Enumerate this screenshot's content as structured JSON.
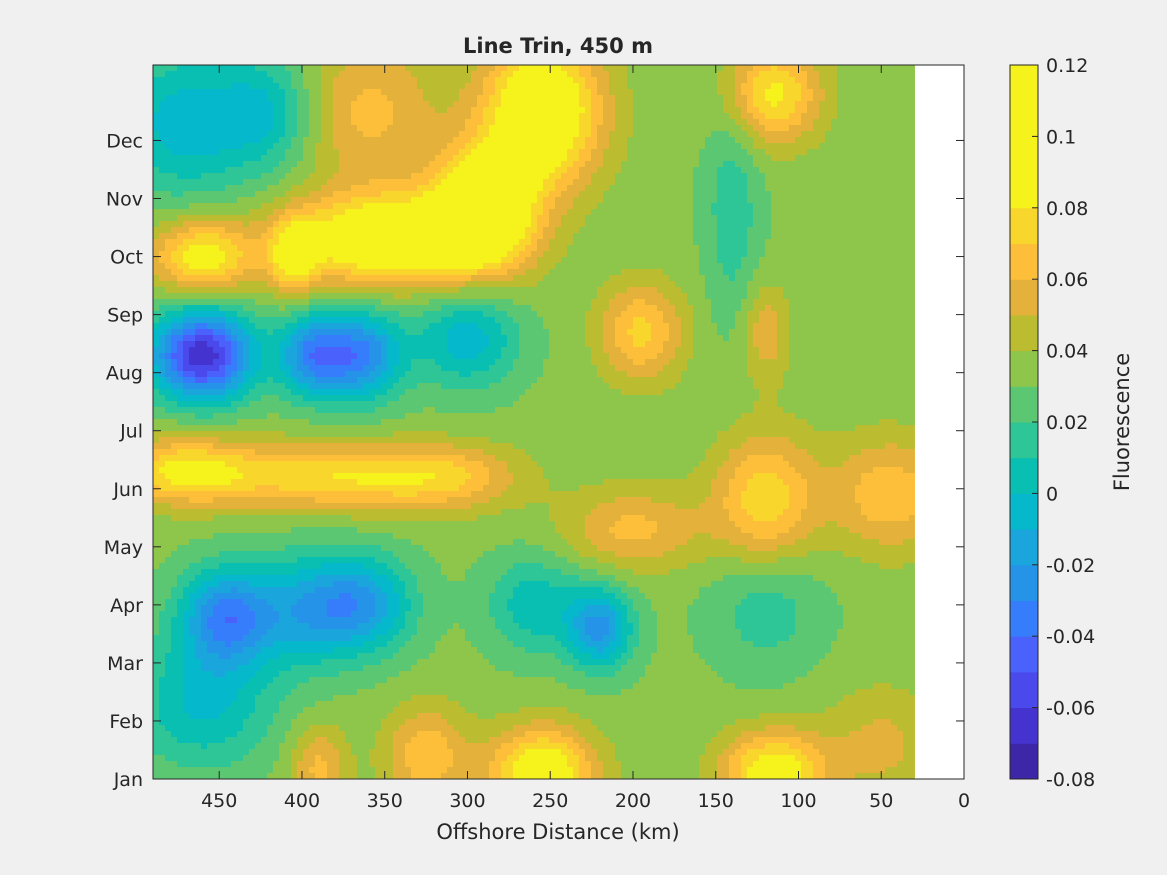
{
  "chart_data": {
    "type": "heatmap",
    "title": "Line Trin, 450 m",
    "xlabel": "Offshore Distance (km)",
    "ylabel": "",
    "x_axis": {
      "reversed": true,
      "lim": [
        0,
        490
      ],
      "ticks": [
        450,
        400,
        350,
        300,
        250,
        200,
        150,
        100,
        50,
        0
      ]
    },
    "y_axis": {
      "categories": [
        "Jan",
        "Feb",
        "Mar",
        "Apr",
        "May",
        "Jun",
        "Jul",
        "Aug",
        "Sep",
        "Oct",
        "Nov",
        "Dec"
      ],
      "lim": [
        0,
        12.3
      ]
    },
    "data_x_range_km": [
      30,
      490
    ],
    "colorbar": {
      "label": "Fluorescence",
      "lim": [
        -0.08,
        0.12
      ],
      "levels_step": 0.01,
      "ticks": [
        "0.12",
        "0.1",
        "0.08",
        "0.06",
        "0.04",
        "0.02",
        "0",
        "-0.02",
        "-0.04",
        "-0.06",
        "-0.08"
      ],
      "tick_values": [
        0.12,
        0.1,
        0.08,
        0.06,
        0.04,
        0.02,
        0,
        -0.02,
        -0.04,
        -0.06,
        -0.08
      ],
      "colors": [
        "#3e26a8",
        "#4433cf",
        "#4a49ec",
        "#4a62fb",
        "#367dfb",
        "#2593e7",
        "#1aa6dd",
        "#06b8cc",
        "#08bfb1",
        "#2ec597",
        "#5bc772",
        "#8ec54b",
        "#bbbc30",
        "#e4b23a",
        "#fdbf39",
        "#f8d62c",
        "#f6f21c"
      ]
    },
    "features": [
      {
        "x": 460,
        "y": 7.3,
        "amp": -0.1,
        "sx": 22,
        "sy": 0.55
      },
      {
        "x": 395,
        "y": 7.3,
        "amp": -0.055,
        "sx": 14,
        "sy": 0.5
      },
      {
        "x": 365,
        "y": 7.3,
        "amp": -0.065,
        "sx": 18,
        "sy": 0.55
      },
      {
        "x": 300,
        "y": 7.6,
        "amp": -0.04,
        "sx": 22,
        "sy": 0.6
      },
      {
        "x": 470,
        "y": 11.3,
        "amp": -0.04,
        "sx": 30,
        "sy": 0.9
      },
      {
        "x": 420,
        "y": 11.5,
        "amp": -0.03,
        "sx": 20,
        "sy": 0.7
      },
      {
        "x": 445,
        "y": 2.8,
        "amp": -0.065,
        "sx": 20,
        "sy": 0.6
      },
      {
        "x": 365,
        "y": 3.0,
        "amp": -0.055,
        "sx": 22,
        "sy": 0.6
      },
      {
        "x": 400,
        "y": 2.9,
        "amp": -0.035,
        "sx": 20,
        "sy": 0.7
      },
      {
        "x": 220,
        "y": 2.6,
        "amp": -0.055,
        "sx": 14,
        "sy": 0.5
      },
      {
        "x": 260,
        "y": 3.0,
        "amp": -0.03,
        "sx": 20,
        "sy": 0.6
      },
      {
        "x": 120,
        "y": 3.0,
        "amp": -0.02,
        "sx": 25,
        "sy": 0.8
      },
      {
        "x": 460,
        "y": 1.3,
        "amp": -0.035,
        "sx": 30,
        "sy": 0.8
      },
      {
        "x": 140,
        "y": 9.8,
        "amp": -0.02,
        "sx": 12,
        "sy": 1.4
      },
      {
        "x": 460,
        "y": 9.0,
        "amp": 0.055,
        "sx": 22,
        "sy": 0.45
      },
      {
        "x": 405,
        "y": 9.0,
        "amp": 0.045,
        "sx": 10,
        "sy": 0.45
      },
      {
        "x": 350,
        "y": 9.3,
        "amp": 0.075,
        "sx": 40,
        "sy": 0.55
      },
      {
        "x": 290,
        "y": 9.8,
        "amp": 0.075,
        "sx": 22,
        "sy": 0.75
      },
      {
        "x": 255,
        "y": 11.5,
        "amp": 0.075,
        "sx": 25,
        "sy": 0.9
      },
      {
        "x": 470,
        "y": 5.3,
        "amp": 0.05,
        "sx": 30,
        "sy": 0.4
      },
      {
        "x": 380,
        "y": 5.2,
        "amp": 0.045,
        "sx": 45,
        "sy": 0.4
      },
      {
        "x": 310,
        "y": 5.2,
        "amp": 0.03,
        "sx": 30,
        "sy": 0.4
      },
      {
        "x": 195,
        "y": 7.7,
        "amp": 0.04,
        "sx": 18,
        "sy": 0.6
      },
      {
        "x": 200,
        "y": 4.3,
        "amp": 0.03,
        "sx": 30,
        "sy": 0.5
      },
      {
        "x": 120,
        "y": 4.8,
        "amp": 0.045,
        "sx": 22,
        "sy": 0.8
      },
      {
        "x": 120,
        "y": 7.7,
        "amp": 0.025,
        "sx": 10,
        "sy": 0.6
      },
      {
        "x": 115,
        "y": 11.8,
        "amp": 0.05,
        "sx": 20,
        "sy": 0.6
      },
      {
        "x": 45,
        "y": 4.9,
        "amp": 0.035,
        "sx": 25,
        "sy": 0.7
      },
      {
        "x": 255,
        "y": 0.1,
        "amp": 0.065,
        "sx": 22,
        "sy": 0.55
      },
      {
        "x": 115,
        "y": 0.1,
        "amp": 0.06,
        "sx": 22,
        "sy": 0.5
      },
      {
        "x": 325,
        "y": 0.4,
        "amp": 0.035,
        "sx": 18,
        "sy": 0.6
      },
      {
        "x": 390,
        "y": 0.2,
        "amp": 0.03,
        "sx": 12,
        "sy": 0.5
      },
      {
        "x": 50,
        "y": 0.6,
        "amp": 0.02,
        "sx": 25,
        "sy": 0.7
      },
      {
        "x": 360,
        "y": 11.5,
        "amp": 0.03,
        "sx": 30,
        "sy": 0.9
      }
    ],
    "base_value": 0.033
  }
}
